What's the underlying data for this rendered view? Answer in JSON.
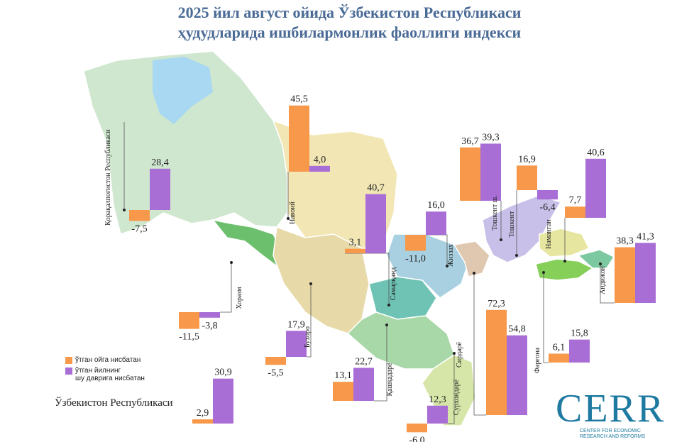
{
  "title": {
    "line1": "2025 йил август ойида Ўзбекистон Республикаси",
    "line2": "ҳудудларида ишбилармонлик фаоллиги индекси"
  },
  "legend": {
    "orange_label": "ўтган ойга нисбатан",
    "purple_label_1": "ўтган йилнинг",
    "purple_label_2": "шу даврига нисбатан"
  },
  "total_label": "Ўзбекистон Республикаси",
  "logo": {
    "big": "CERR",
    "line1": "CENTER FOR ECONOMIC",
    "line2": "RESEARCH AND REFORMS"
  },
  "colors": {
    "orange": "#f7984a",
    "purple": "#a86ed6",
    "title": "#4a6b96",
    "logo": "#1e7aa0"
  },
  "chart_data": {
    "type": "bar",
    "series": [
      {
        "name": "ўтган ойга нисбатан",
        "color": "#f7984a"
      },
      {
        "name": "ўтган йилнинг шу даврига нисбатан",
        "color": "#a86ed6"
      }
    ],
    "regions": [
      {
        "name": "Қорақалпоғистон Республикаси",
        "values": [
          -7.5,
          28.4
        ],
        "labels": [
          "-7,5",
          "28,4"
        ]
      },
      {
        "name": "Навоий",
        "values": [
          45.5,
          4.0
        ],
        "labels": [
          "45,5",
          "4,0"
        ]
      },
      {
        "name": "Самарқанд",
        "values": [
          3.1,
          40.7
        ],
        "labels": [
          "3,1",
          "40,7"
        ]
      },
      {
        "name": "Жиззах",
        "values": [
          -11.0,
          16.0
        ],
        "labels": [
          "-11,0",
          "16,0"
        ]
      },
      {
        "name": "Тошкент ш.",
        "values": [
          36.7,
          39.3
        ],
        "labels": [
          "36,7",
          "39,3"
        ]
      },
      {
        "name": "Тошкент",
        "values": [
          16.9,
          -6.4
        ],
        "labels": [
          "16,9",
          "-6,4"
        ]
      },
      {
        "name": "Наманган",
        "values": [
          7.7,
          40.6
        ],
        "labels": [
          "7,7",
          "40,6"
        ]
      },
      {
        "name": "Андижон",
        "values": [
          38.3,
          41.3
        ],
        "labels": [
          "38,3",
          "41,3"
        ]
      },
      {
        "name": "Хоразм",
        "values": [
          -11.5,
          -3.8
        ],
        "labels": [
          "-11,5",
          "-3,8"
        ]
      },
      {
        "name": "Бухоро",
        "values": [
          -5.5,
          17.9
        ],
        "labels": [
          "-5,5",
          "17,9"
        ]
      },
      {
        "name": "Қашқадарё",
        "values": [
          13.1,
          22.7
        ],
        "labels": [
          "13,1",
          "22,7"
        ]
      },
      {
        "name": "Сирдарё",
        "values": [
          72.3,
          54.8
        ],
        "labels": [
          "72,3",
          "54,8"
        ]
      },
      {
        "name": "Фарғона",
        "values": [
          6.1,
          15.8
        ],
        "labels": [
          "6,1",
          "15,8"
        ]
      },
      {
        "name": "Сурхондарё",
        "values": [
          -6.0,
          12.3
        ],
        "labels": [
          "-6,0",
          "12,3"
        ]
      },
      {
        "name": "Ўзбекистон Республикаси",
        "values": [
          2.9,
          30.9
        ],
        "labels": [
          "2,9",
          "30,9"
        ]
      }
    ]
  }
}
